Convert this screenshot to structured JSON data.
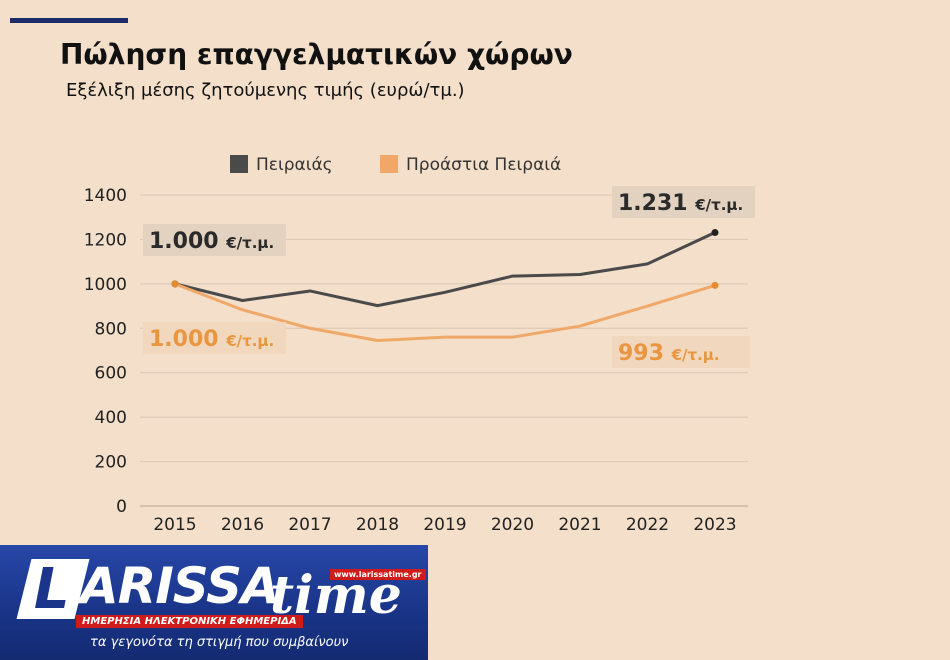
{
  "header": {
    "title": "Πώληση επαγγελματικών χώρων",
    "subtitle": "Εξέλιξη μέσης ζητούμενης τιμής (ευρώ/τμ.)"
  },
  "colors": {
    "background": "#f3dfca",
    "series_piraeus": "#4a4a4a",
    "series_suburbs": "#f0a868",
    "label_box_dark": "#e3d2c0",
    "label_box_orange": "#f2d7bf",
    "label_text_orange": "#e8963f",
    "grid": "#d9c6b3",
    "logo_blue": "#1a3589",
    "logo_red": "#d11b1b"
  },
  "chart_data": {
    "type": "line",
    "x": [
      "2015",
      "2016",
      "2017",
      "2018",
      "2019",
      "2020",
      "2021",
      "2022",
      "2023"
    ],
    "series": [
      {
        "name": "Πειραιάς",
        "values": [
          1000,
          925,
          968,
          902,
          962,
          1035,
          1042,
          1090,
          1231
        ]
      },
      {
        "name": "Προάστια Πειραιά",
        "values": [
          1000,
          883,
          800,
          745,
          760,
          760,
          810,
          900,
          993
        ]
      }
    ],
    "ylim": [
      0,
      1400
    ],
    "yticks": [
      "0",
      "200",
      "400",
      "600",
      "800",
      "1000",
      "1200",
      "1400"
    ],
    "grid": true,
    "legend": "top",
    "annotations": [
      {
        "series": 0,
        "point": 0,
        "number": "1.000",
        "unit": "€/τ.μ."
      },
      {
        "series": 1,
        "point": 0,
        "number": "1.000",
        "unit": "€/τ.μ."
      },
      {
        "series": 0,
        "point": 8,
        "number": "1.231",
        "unit": "€/τ.μ."
      },
      {
        "series": 1,
        "point": 8,
        "number": "993",
        "unit": "€/τ.μ."
      }
    ]
  },
  "logo": {
    "initial": "L",
    "brand": "ARISSA",
    "brand2": "time",
    "url": "www.larissatime.gr",
    "tagline": "ΗΜΕΡΗΣΙΑ ΗΛΕΚΤΡΟΝΙΚΗ ΕΦΗΜΕΡΙΔΑ",
    "slogan": "τα γεγονότα τη στιγμή που συμβαίνουν"
  }
}
